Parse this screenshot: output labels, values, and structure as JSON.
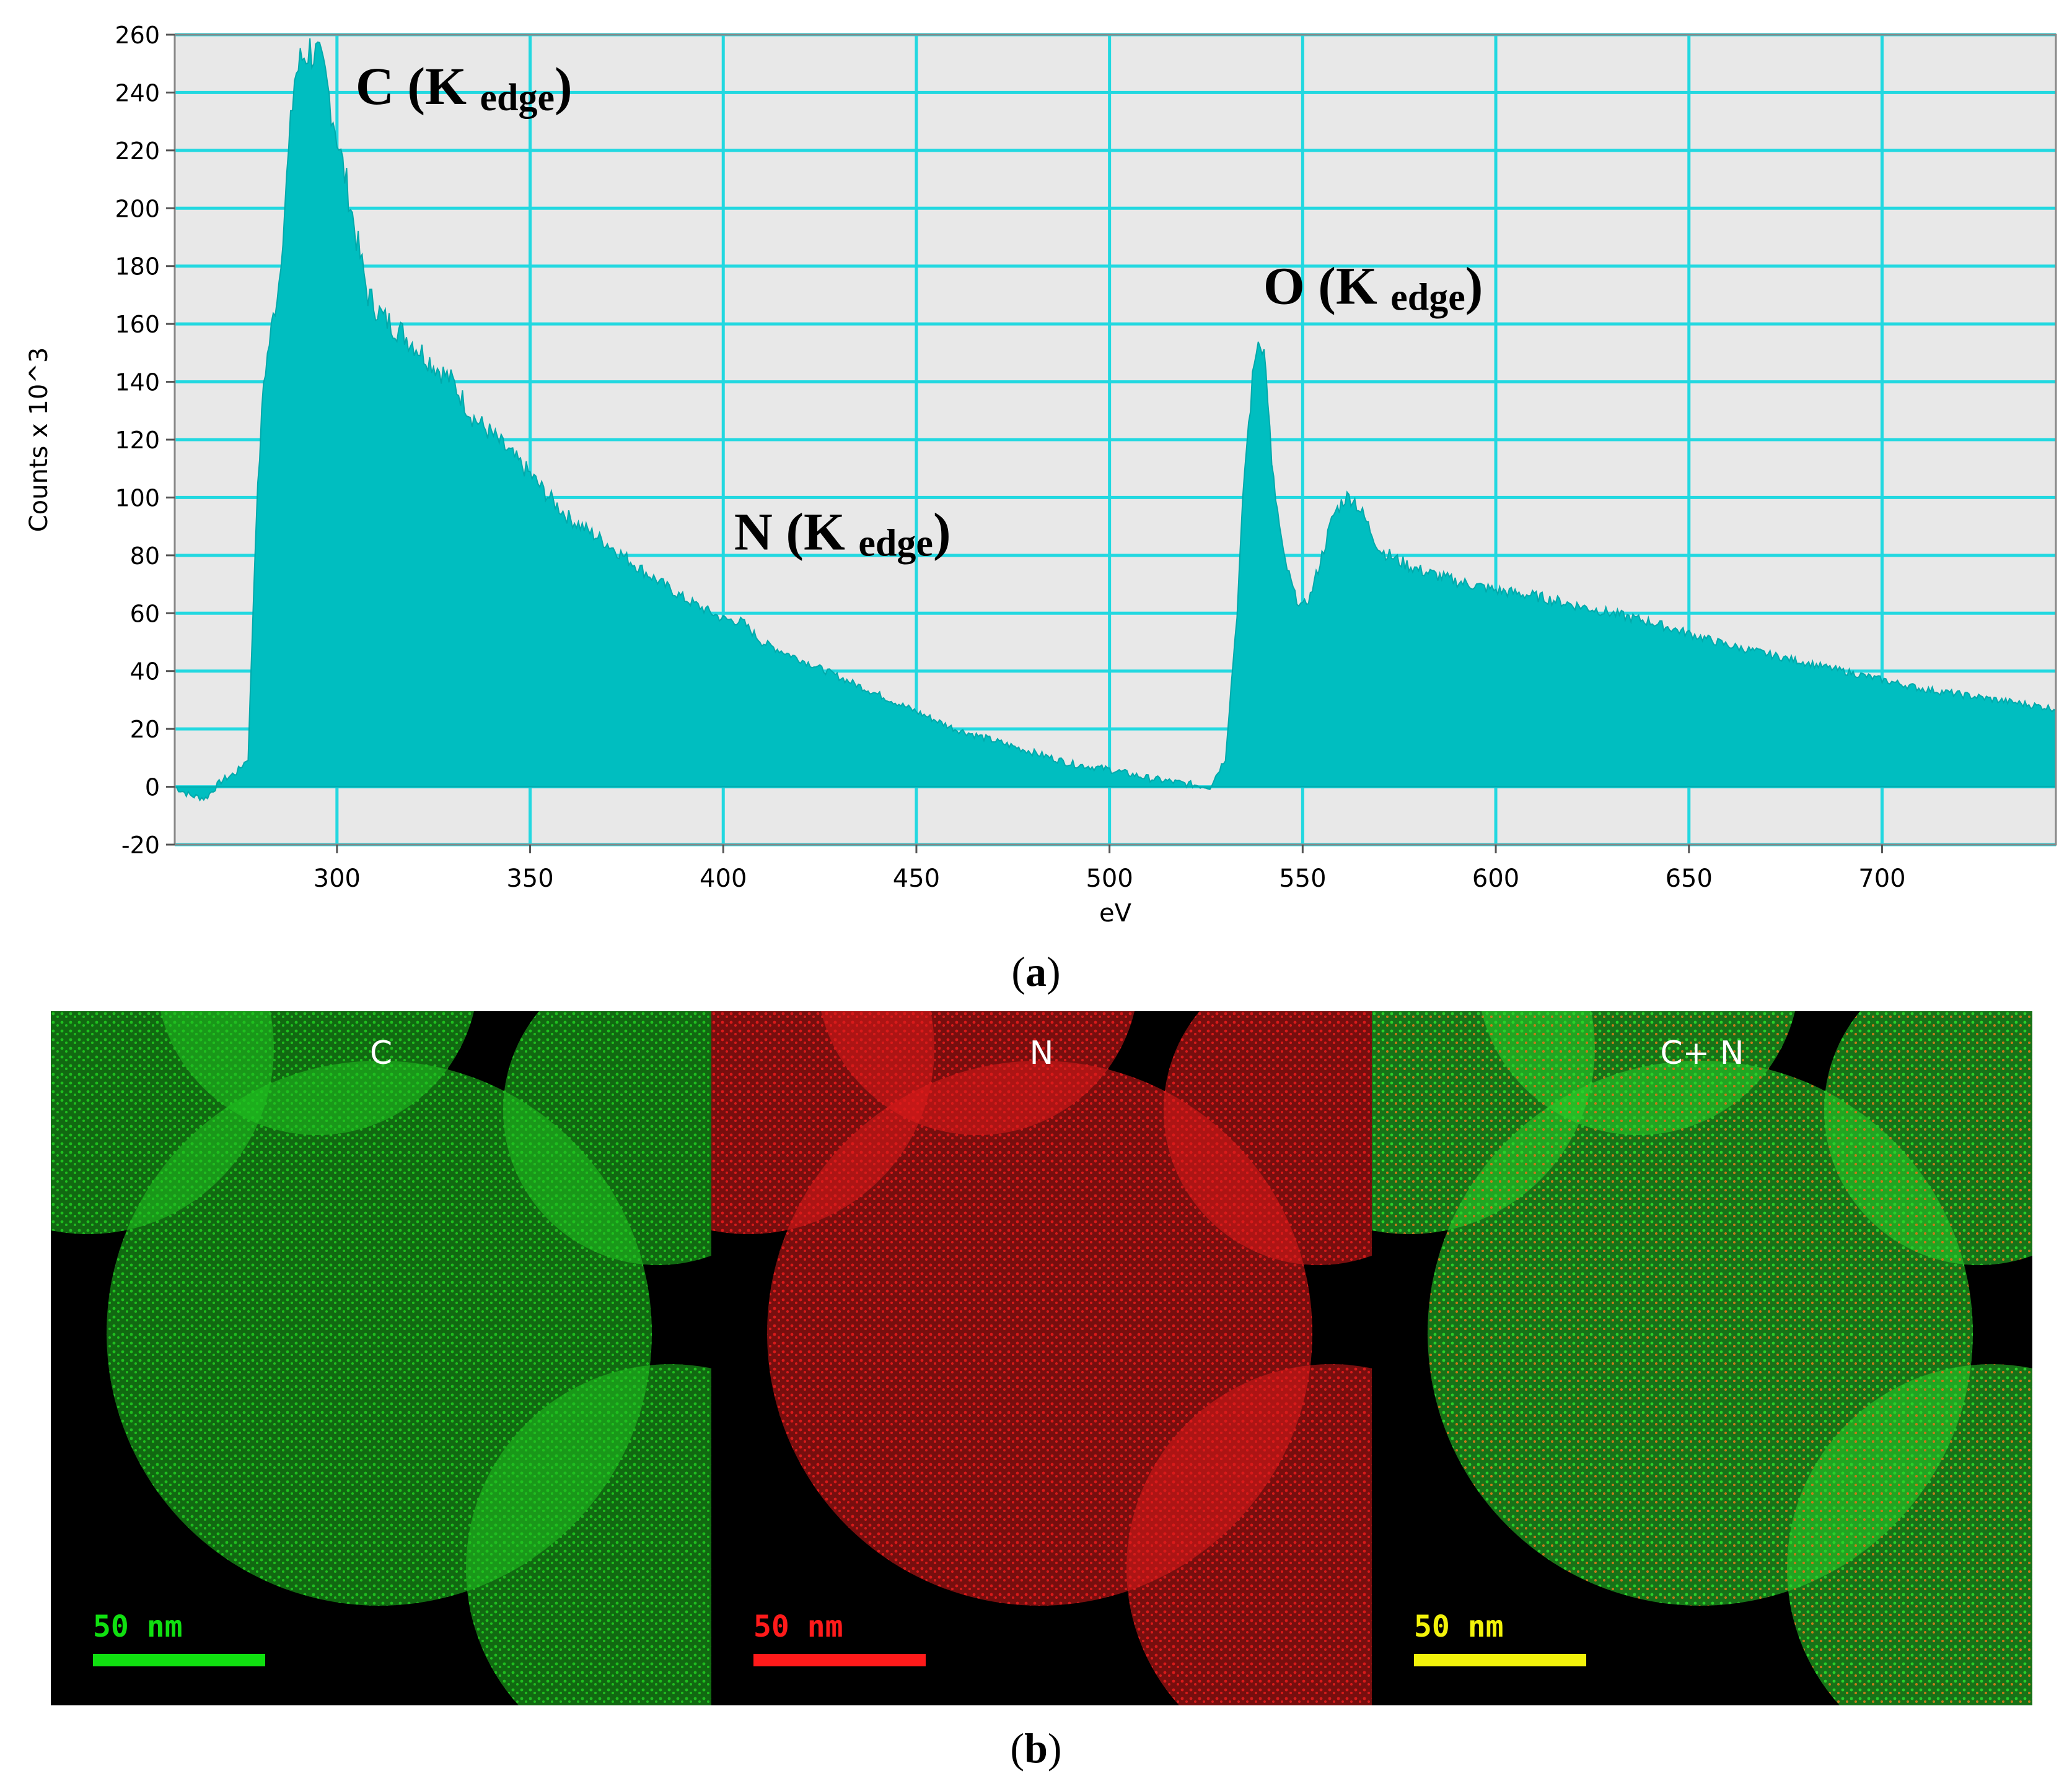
{
  "chart_data": {
    "type": "area",
    "xlabel": "eV",
    "ylabel": "Counts x 10^3",
    "xlim": [
      258,
      745
    ],
    "ylim": [
      -20,
      260
    ],
    "xticks": [
      300,
      350,
      400,
      450,
      500,
      550,
      600,
      650,
      700
    ],
    "yticks": [
      -20,
      0,
      20,
      40,
      60,
      80,
      100,
      120,
      140,
      160,
      180,
      200,
      220,
      240,
      260
    ],
    "grid": true,
    "series": [
      {
        "color": "#00BEC0",
        "x": [
          258,
          262,
          266,
          270,
          274,
          277,
          279,
          281,
          283,
          285,
          287,
          289,
          291,
          293,
          295,
          297,
          299,
          301,
          303,
          305,
          308,
          312,
          316,
          320,
          325,
          330,
          335,
          340,
          345,
          350,
          355,
          360,
          370,
          380,
          390,
          400,
          405,
          410,
          420,
          430,
          440,
          450,
          460,
          470,
          480,
          490,
          500,
          510,
          520,
          526,
          530,
          533,
          535,
          537,
          538,
          539,
          540,
          541,
          542,
          545,
          548,
          550,
          552,
          555,
          558,
          561,
          563,
          566,
          570,
          575,
          580,
          590,
          600,
          610,
          620,
          630,
          640,
          650,
          660,
          670,
          680,
          690,
          700,
          710,
          720,
          730,
          740,
          745
        ],
        "y": [
          0,
          -3,
          -4,
          2,
          5,
          10,
          90,
          140,
          158,
          175,
          210,
          245,
          252,
          255,
          252,
          245,
          232,
          218,
          205,
          190,
          170,
          162,
          158,
          153,
          146,
          140,
          128,
          122,
          115,
          108,
          100,
          93,
          84,
          74,
          65,
          58,
          57,
          50,
          44,
          38,
          32,
          26,
          20,
          16,
          12,
          8,
          6,
          3,
          1,
          0,
          10,
          60,
          110,
          140,
          152,
          156,
          150,
          135,
          110,
          80,
          66,
          62,
          66,
          80,
          94,
          100,
          100,
          93,
          82,
          78,
          75,
          71,
          68,
          66,
          63,
          60,
          57,
          53,
          49,
          46,
          43,
          40,
          37,
          34,
          32,
          30,
          28,
          27
        ]
      }
    ],
    "annotations": [
      {
        "element": "C",
        "edge": "K",
        "sub": "edge",
        "x": 300,
        "y": 236
      },
      {
        "element": "O",
        "edge": "K",
        "sub": "edge",
        "x": 535,
        "y": 167
      },
      {
        "element": "N",
        "edge": "K",
        "sub": "edge",
        "x": 398,
        "y": 82
      }
    ]
  },
  "captions": {
    "a": "a",
    "b": "b"
  },
  "maps": [
    {
      "title": "C",
      "scale": "50 nm",
      "scale_color": "#10e010",
      "signal_color": "#1fbf1f"
    },
    {
      "title": "N",
      "scale": "50 nm",
      "scale_color": "#ff1a1a",
      "signal_color": "#d91a1a"
    },
    {
      "title": "C+ N",
      "scale": "50 nm",
      "scale_color": "#f2f20a",
      "signal_color": "#2ad02a"
    }
  ]
}
